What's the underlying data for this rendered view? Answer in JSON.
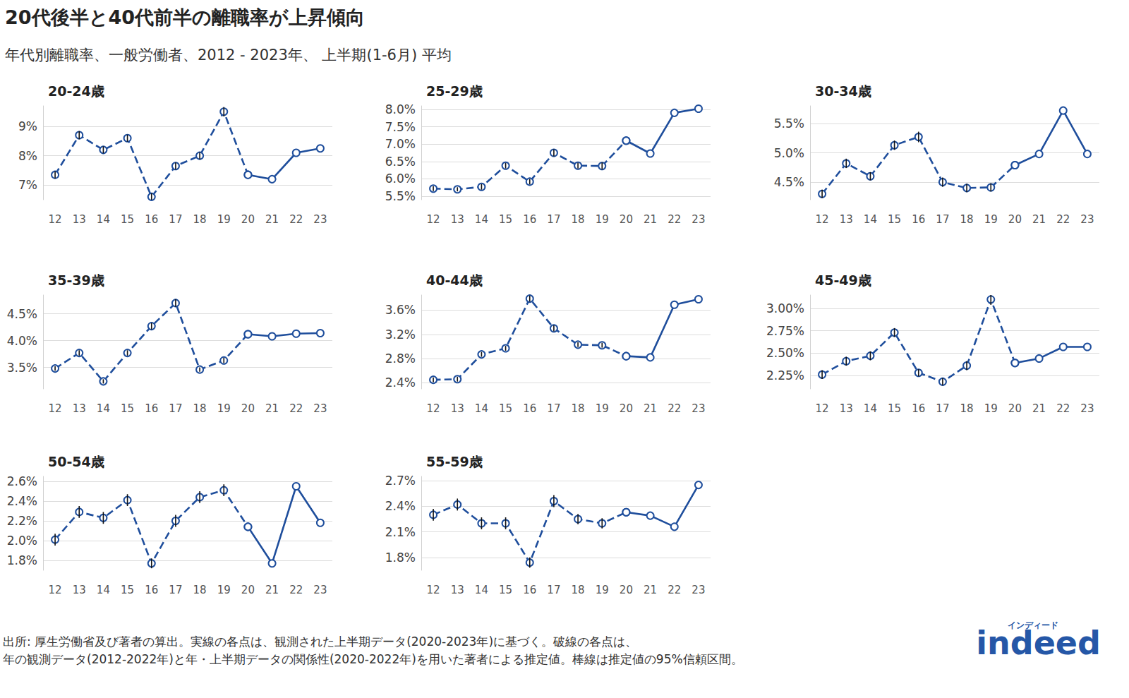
{
  "title": "20代後半と40代前半の離職率が上昇傾向",
  "subtitle": "年代別離職率、一般労働者、2012 - 2023年、 上半期(1-6月) 平均",
  "source": [
    "出所: 厚生労働省及び著者の算出。実線の各点は、観測された上半期データ(2020-2023年)に基づく。破線の各点は、",
    "年の観測データ(2012-2022年)と年・上半期データの関係性(2020-2022年)を用いた著者による推定値。棒線は推定値の95%信頼区間。"
  ],
  "logo": {
    "text": "indeed",
    "sub": "インディード"
  },
  "chart_data": [
    {
      "type": "line",
      "title": "20-24歳",
      "grid": true,
      "categories": [
        "12",
        "13",
        "14",
        "15",
        "16",
        "17",
        "18",
        "19",
        "20",
        "21",
        "22",
        "23"
      ],
      "ylim": [
        6.5,
        9.7
      ],
      "yticks": [
        {
          "value": 7,
          "label": "7%"
        },
        {
          "value": 8,
          "label": "8%"
        },
        {
          "value": 9,
          "label": "9%"
        }
      ],
      "series": [
        {
          "color": "#1f4e9c",
          "line_style": "dashed",
          "marker": "open_circle",
          "values": [
            7.35,
            8.7,
            8.2,
            8.6,
            6.6,
            7.65,
            8.0,
            9.5,
            7.35,
            null,
            null,
            null
          ],
          "errors": [
            0.12,
            0.14,
            0.12,
            0.12,
            0.12,
            0.12,
            0.12,
            0.16,
            null,
            null,
            null,
            null
          ]
        },
        {
          "color": "#1f4e9c",
          "line_style": "solid",
          "marker": "open_circle",
          "values": [
            null,
            null,
            null,
            null,
            null,
            null,
            null,
            null,
            7.35,
            7.2,
            8.1,
            8.25
          ]
        }
      ]
    },
    {
      "type": "line",
      "title": "25-29歳",
      "grid": true,
      "categories": [
        "12",
        "13",
        "14",
        "15",
        "16",
        "17",
        "18",
        "19",
        "20",
        "21",
        "22",
        "23"
      ],
      "ylim": [
        5.4,
        8.1
      ],
      "yticks": [
        {
          "value": 5.5,
          "label": "5.5%"
        },
        {
          "value": 6,
          "label": "6.0%"
        },
        {
          "value": 6.5,
          "label": "6.5%"
        },
        {
          "value": 7,
          "label": "7.0%"
        },
        {
          "value": 7.5,
          "label": "7.5%"
        },
        {
          "value": 8,
          "label": "8.0%"
        }
      ],
      "series": [
        {
          "color": "#1f4e9c",
          "line_style": "dashed",
          "marker": "open_circle",
          "values": [
            5.72,
            5.7,
            5.77,
            6.38,
            5.92,
            6.75,
            6.38,
            6.37,
            7.1,
            null,
            null,
            null
          ],
          "errors": [
            0.07,
            0.06,
            0.08,
            0.08,
            0.08,
            0.1,
            0.08,
            0.1,
            null,
            null,
            null,
            null
          ]
        },
        {
          "color": "#1f4e9c",
          "line_style": "solid",
          "marker": "open_circle",
          "values": [
            null,
            null,
            null,
            null,
            null,
            null,
            null,
            null,
            7.1,
            6.73,
            7.9,
            8.02
          ]
        }
      ]
    },
    {
      "type": "line",
      "title": "30-34歳",
      "grid": true,
      "categories": [
        "12",
        "13",
        "14",
        "15",
        "16",
        "17",
        "18",
        "19",
        "20",
        "21",
        "22",
        "23"
      ],
      "ylim": [
        4.2,
        5.8
      ],
      "yticks": [
        {
          "value": 4.5,
          "label": "4.5%"
        },
        {
          "value": 5,
          "label": "5.0%"
        },
        {
          "value": 5.5,
          "label": "5.5%"
        }
      ],
      "series": [
        {
          "color": "#1f4e9c",
          "line_style": "dashed",
          "marker": "open_circle",
          "values": [
            4.3,
            4.82,
            4.6,
            5.13,
            5.27,
            4.5,
            4.4,
            4.41,
            4.79,
            null,
            null,
            null
          ],
          "errors": [
            0.07,
            0.08,
            0.07,
            0.08,
            0.09,
            0.08,
            0.07,
            0.07,
            null,
            null,
            null,
            null
          ]
        },
        {
          "color": "#1f4e9c",
          "line_style": "solid",
          "marker": "open_circle",
          "values": [
            null,
            null,
            null,
            null,
            null,
            null,
            null,
            null,
            4.79,
            4.98,
            5.72,
            4.98
          ]
        }
      ]
    },
    {
      "type": "line",
      "title": "35-39歳",
      "grid": true,
      "categories": [
        "12",
        "13",
        "14",
        "15",
        "16",
        "17",
        "18",
        "19",
        "20",
        "21",
        "22",
        "23"
      ],
      "ylim": [
        3.1,
        4.85
      ],
      "yticks": [
        {
          "value": 3.5,
          "label": "3.5%"
        },
        {
          "value": 4,
          "label": "4.0%"
        },
        {
          "value": 4.5,
          "label": "4.5%"
        }
      ],
      "series": [
        {
          "color": "#1f4e9c",
          "line_style": "dashed",
          "marker": "open_circle",
          "values": [
            3.48,
            3.77,
            3.24,
            3.77,
            4.27,
            4.7,
            3.46,
            3.63,
            4.12,
            null,
            null,
            null
          ],
          "errors": [
            0.04,
            0.05,
            0.04,
            0.05,
            0.06,
            0.07,
            0.04,
            0.05,
            null,
            null,
            null,
            null
          ]
        },
        {
          "color": "#1f4e9c",
          "line_style": "solid",
          "marker": "open_circle",
          "values": [
            null,
            null,
            null,
            null,
            null,
            null,
            null,
            null,
            4.12,
            4.08,
            4.13,
            4.14
          ]
        }
      ]
    },
    {
      "type": "line",
      "title": "40-44歳",
      "grid": true,
      "categories": [
        "12",
        "13",
        "14",
        "15",
        "16",
        "17",
        "18",
        "19",
        "20",
        "21",
        "22",
        "23"
      ],
      "ylim": [
        2.3,
        3.85
      ],
      "yticks": [
        {
          "value": 2.4,
          "label": "2.4%"
        },
        {
          "value": 2.8,
          "label": "2.8%"
        },
        {
          "value": 3.2,
          "label": "3.2%"
        },
        {
          "value": 3.6,
          "label": "3.6%"
        }
      ],
      "series": [
        {
          "color": "#1f4e9c",
          "line_style": "dashed",
          "marker": "open_circle",
          "values": [
            2.45,
            2.46,
            2.87,
            2.97,
            3.79,
            3.3,
            3.03,
            3.02,
            2.84,
            null,
            null,
            null
          ],
          "errors": [
            0.04,
            0.04,
            0.04,
            0.04,
            0.05,
            0.05,
            0.04,
            0.04,
            null,
            null,
            null,
            null
          ]
        },
        {
          "color": "#1f4e9c",
          "line_style": "solid",
          "marker": "open_circle",
          "values": [
            null,
            null,
            null,
            null,
            null,
            null,
            null,
            null,
            2.84,
            2.82,
            3.69,
            3.78
          ]
        }
      ]
    },
    {
      "type": "line",
      "title": "45-49歳",
      "grid": true,
      "categories": [
        "12",
        "13",
        "14",
        "15",
        "16",
        "17",
        "18",
        "19",
        "20",
        "21",
        "22",
        "23"
      ],
      "ylim": [
        2.1,
        3.15
      ],
      "yticks": [
        {
          "value": 2.25,
          "label": "2.25%"
        },
        {
          "value": 2.5,
          "label": "2.50%"
        },
        {
          "value": 2.75,
          "label": "2.75%"
        },
        {
          "value": 3,
          "label": "3.00%"
        }
      ],
      "series": [
        {
          "color": "#1f4e9c",
          "line_style": "dashed",
          "marker": "open_circle",
          "values": [
            2.26,
            2.41,
            2.47,
            2.73,
            2.28,
            2.18,
            2.36,
            3.1,
            2.39,
            null,
            null,
            null
          ],
          "errors": [
            0.05,
            0.05,
            0.05,
            0.05,
            0.04,
            0.04,
            0.05,
            0.06,
            null,
            null,
            null,
            null
          ]
        },
        {
          "color": "#1f4e9c",
          "line_style": "solid",
          "marker": "open_circle",
          "values": [
            null,
            null,
            null,
            null,
            null,
            null,
            null,
            null,
            2.39,
            2.44,
            2.57,
            2.57
          ]
        }
      ]
    },
    {
      "type": "line",
      "title": "50-54歳",
      "grid": true,
      "categories": [
        "12",
        "13",
        "14",
        "15",
        "16",
        "17",
        "18",
        "19",
        "20",
        "21",
        "22",
        "23"
      ],
      "ylim": [
        1.7,
        2.65
      ],
      "yticks": [
        {
          "value": 1.8,
          "label": "1.8%"
        },
        {
          "value": 2,
          "label": "2.0%"
        },
        {
          "value": 2.2,
          "label": "2.2%"
        },
        {
          "value": 2.4,
          "label": "2.4%"
        },
        {
          "value": 2.6,
          "label": "2.6%"
        }
      ],
      "series": [
        {
          "color": "#1f4e9c",
          "line_style": "dashed",
          "marker": "open_circle",
          "values": [
            2.01,
            2.29,
            2.23,
            2.41,
            1.77,
            2.2,
            2.44,
            2.51,
            2.14,
            null,
            null,
            null
          ],
          "errors": [
            0.06,
            0.06,
            0.06,
            0.06,
            0.05,
            0.06,
            0.06,
            0.06,
            null,
            null,
            null,
            null
          ]
        },
        {
          "color": "#1f4e9c",
          "line_style": "solid",
          "marker": "open_circle",
          "values": [
            null,
            null,
            null,
            null,
            null,
            null,
            null,
            null,
            2.14,
            1.77,
            2.55,
            2.18
          ]
        }
      ]
    },
    {
      "type": "line",
      "title": "55-59歳",
      "grid": true,
      "categories": [
        "12",
        "13",
        "14",
        "15",
        "16",
        "17",
        "18",
        "19",
        "20",
        "21",
        "22",
        "23"
      ],
      "ylim": [
        1.65,
        2.75
      ],
      "yticks": [
        {
          "value": 1.8,
          "label": "1.8%"
        },
        {
          "value": 2.1,
          "label": "2.1%"
        },
        {
          "value": 2.4,
          "label": "2.4%"
        },
        {
          "value": 2.7,
          "label": "2.7%"
        }
      ],
      "series": [
        {
          "color": "#1f4e9c",
          "line_style": "dashed",
          "marker": "open_circle",
          "values": [
            2.3,
            2.42,
            2.2,
            2.2,
            1.74,
            2.46,
            2.25,
            2.2,
            2.33,
            null,
            null,
            null
          ],
          "errors": [
            0.07,
            0.07,
            0.07,
            0.07,
            0.06,
            0.07,
            0.06,
            0.06,
            null,
            null,
            null,
            null
          ]
        },
        {
          "color": "#1f4e9c",
          "line_style": "solid",
          "marker": "open_circle",
          "values": [
            null,
            null,
            null,
            null,
            null,
            null,
            null,
            null,
            2.33,
            2.29,
            2.16,
            2.65
          ]
        }
      ]
    }
  ]
}
